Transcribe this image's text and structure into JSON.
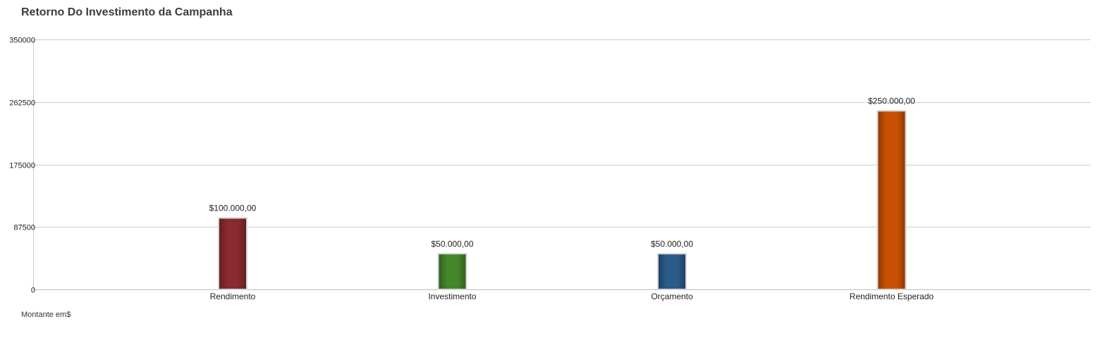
{
  "chart_data": {
    "type": "bar",
    "title": "Retorno Do Investimento da Campanha",
    "footer_label": "Montante em$",
    "categories": [
      "Rendimento",
      "Investimento",
      "Orçamento",
      "Rendimento Esperado"
    ],
    "values": [
      100000,
      50000,
      50000,
      250000
    ],
    "data_labels": [
      "$100.000,00",
      "$50.000,00",
      "$50.000,00",
      "$250.000,00"
    ],
    "colors": [
      "#8b2a2e",
      "#44862a",
      "#2b5b8c",
      "#c95002"
    ],
    "ylim": [
      0,
      350000
    ],
    "yticks": [
      "0",
      "87500",
      "175000",
      "262500",
      "350000"
    ],
    "grid": true,
    "legend": "none"
  }
}
